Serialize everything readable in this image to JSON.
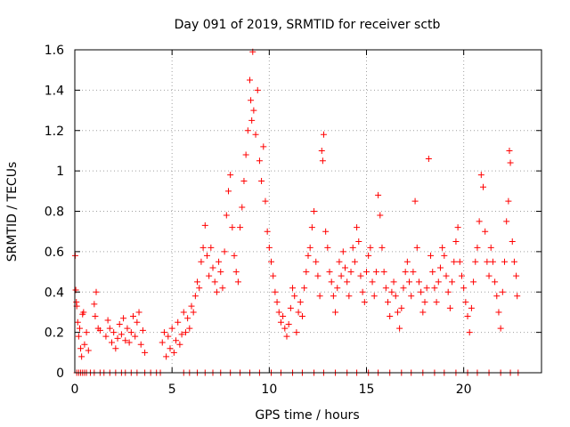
{
  "chart_data": {
    "type": "scatter",
    "title": "Day 091 of 2019, SRMTID for receiver sctb",
    "xlabel": "GPS time / hours",
    "ylabel": "SRMTID / TECUs",
    "xlim": [
      0,
      24
    ],
    "ylim": [
      0,
      1.6
    ],
    "xticks": [
      0,
      5,
      10,
      15,
      20
    ],
    "xtick_labels": [
      "0",
      "5",
      "10",
      "15",
      "20"
    ],
    "yticks": [
      0,
      0.2,
      0.4,
      0.6,
      0.8,
      1.0,
      1.2,
      1.4,
      1.6
    ],
    "ytick_labels": [
      "0",
      "0.2",
      "0.4",
      "0.6",
      "0.8",
      "1",
      "1.2",
      "1.4",
      "1.6"
    ],
    "grid": true,
    "marker": "+",
    "color": "#ff0000",
    "series": [
      {
        "name": "SRMTID",
        "points": [
          [
            0.02,
            0.58
          ],
          [
            0.05,
            0.41
          ],
          [
            0.08,
            0.35
          ],
          [
            0.1,
            0.33
          ],
          [
            0.15,
            0.25
          ],
          [
            0.2,
            0.18
          ],
          [
            0.25,
            0.22
          ],
          [
            0.3,
            0.12
          ],
          [
            0.35,
            0.08
          ],
          [
            0.4,
            0.29
          ],
          [
            0.45,
            0.3
          ],
          [
            0.5,
            0.14
          ],
          [
            0.6,
            0.2
          ],
          [
            0.7,
            0.11
          ],
          [
            1.0,
            0.34
          ],
          [
            1.05,
            0.28
          ],
          [
            1.1,
            0.4
          ],
          [
            1.2,
            0.22
          ],
          [
            1.3,
            0.21
          ],
          [
            1.6,
            0.18
          ],
          [
            1.7,
            0.26
          ],
          [
            1.8,
            0.22
          ],
          [
            1.9,
            0.15
          ],
          [
            2.0,
            0.2
          ],
          [
            2.1,
            0.12
          ],
          [
            2.2,
            0.17
          ],
          [
            2.3,
            0.24
          ],
          [
            2.4,
            0.19
          ],
          [
            2.5,
            0.27
          ],
          [
            2.6,
            0.16
          ],
          [
            2.7,
            0.22
          ],
          [
            2.8,
            0.15
          ],
          [
            2.9,
            0.2
          ],
          [
            3.0,
            0.28
          ],
          [
            3.1,
            0.18
          ],
          [
            3.2,
            0.25
          ],
          [
            3.3,
            0.3
          ],
          [
            3.4,
            0.14
          ],
          [
            3.5,
            0.21
          ],
          [
            3.6,
            0.1
          ],
          [
            4.5,
            0.15
          ],
          [
            4.6,
            0.2
          ],
          [
            4.7,
            0.08
          ],
          [
            4.8,
            0.18
          ],
          [
            4.9,
            0.12
          ],
          [
            5.0,
            0.22
          ],
          [
            5.1,
            0.1
          ],
          [
            5.2,
            0.16
          ],
          [
            5.3,
            0.25
          ],
          [
            5.4,
            0.14
          ],
          [
            5.5,
            0.19
          ],
          [
            5.6,
            0.3
          ],
          [
            5.7,
            0.2
          ],
          [
            5.8,
            0.27
          ],
          [
            5.9,
            0.22
          ],
          [
            6.0,
            0.33
          ],
          [
            6.1,
            0.3
          ],
          [
            6.2,
            0.38
          ],
          [
            6.3,
            0.45
          ],
          [
            6.4,
            0.42
          ],
          [
            6.5,
            0.55
          ],
          [
            6.6,
            0.62
          ],
          [
            6.7,
            0.73
          ],
          [
            6.8,
            0.58
          ],
          [
            6.9,
            0.48
          ],
          [
            7.0,
            0.62
          ],
          [
            7.1,
            0.52
          ],
          [
            7.2,
            0.45
          ],
          [
            7.3,
            0.4
          ],
          [
            7.4,
            0.55
          ],
          [
            7.5,
            0.5
          ],
          [
            7.6,
            0.42
          ],
          [
            7.7,
            0.6
          ],
          [
            7.8,
            0.78
          ],
          [
            7.9,
            0.9
          ],
          [
            8.0,
            0.98
          ],
          [
            8.1,
            0.72
          ],
          [
            8.2,
            0.58
          ],
          [
            8.3,
            0.5
          ],
          [
            8.4,
            0.45
          ],
          [
            8.5,
            0.72
          ],
          [
            8.6,
            0.82
          ],
          [
            8.7,
            0.95
          ],
          [
            8.8,
            1.08
          ],
          [
            8.9,
            1.2
          ],
          [
            9.0,
            1.45
          ],
          [
            9.05,
            1.35
          ],
          [
            9.1,
            1.25
          ],
          [
            9.15,
            1.59
          ],
          [
            9.2,
            1.3
          ],
          [
            9.3,
            1.18
          ],
          [
            9.4,
            1.4
          ],
          [
            9.5,
            1.05
          ],
          [
            9.6,
            0.95
          ],
          [
            9.7,
            1.12
          ],
          [
            9.8,
            0.85
          ],
          [
            9.9,
            0.7
          ],
          [
            10.0,
            0.62
          ],
          [
            10.1,
            0.55
          ],
          [
            10.2,
            0.48
          ],
          [
            10.3,
            0.4
          ],
          [
            10.4,
            0.35
          ],
          [
            10.5,
            0.3
          ],
          [
            10.6,
            0.25
          ],
          [
            10.7,
            0.28
          ],
          [
            10.8,
            0.22
          ],
          [
            10.9,
            0.18
          ],
          [
            11.0,
            0.24
          ],
          [
            11.1,
            0.32
          ],
          [
            11.2,
            0.42
          ],
          [
            11.3,
            0.38
          ],
          [
            11.4,
            0.2
          ],
          [
            11.5,
            0.3
          ],
          [
            11.6,
            0.35
          ],
          [
            11.7,
            0.28
          ],
          [
            11.8,
            0.42
          ],
          [
            11.9,
            0.5
          ],
          [
            12.0,
            0.58
          ],
          [
            12.1,
            0.62
          ],
          [
            12.2,
            0.72
          ],
          [
            12.3,
            0.8
          ],
          [
            12.4,
            0.55
          ],
          [
            12.5,
            0.48
          ],
          [
            12.6,
            0.38
          ],
          [
            12.7,
            1.1
          ],
          [
            12.75,
            1.05
          ],
          [
            12.8,
            1.18
          ],
          [
            12.9,
            0.7
          ],
          [
            13.0,
            0.62
          ],
          [
            13.1,
            0.5
          ],
          [
            13.2,
            0.45
          ],
          [
            13.3,
            0.38
          ],
          [
            13.4,
            0.3
          ],
          [
            13.5,
            0.42
          ],
          [
            13.6,
            0.55
          ],
          [
            13.7,
            0.48
          ],
          [
            13.8,
            0.6
          ],
          [
            13.9,
            0.52
          ],
          [
            14.0,
            0.45
          ],
          [
            14.1,
            0.38
          ],
          [
            14.2,
            0.5
          ],
          [
            14.3,
            0.62
          ],
          [
            14.4,
            0.55
          ],
          [
            14.5,
            0.72
          ],
          [
            14.6,
            0.65
          ],
          [
            14.7,
            0.48
          ],
          [
            14.8,
            0.4
          ],
          [
            14.9,
            0.35
          ],
          [
            15.0,
            0.5
          ],
          [
            15.1,
            0.58
          ],
          [
            15.2,
            0.62
          ],
          [
            15.3,
            0.45
          ],
          [
            15.4,
            0.38
          ],
          [
            15.5,
            0.5
          ],
          [
            15.6,
            0.88
          ],
          [
            15.7,
            0.78
          ],
          [
            15.8,
            0.62
          ],
          [
            15.9,
            0.5
          ],
          [
            16.0,
            0.42
          ],
          [
            16.1,
            0.35
          ],
          [
            16.2,
            0.28
          ],
          [
            16.3,
            0.4
          ],
          [
            16.4,
            0.45
          ],
          [
            16.5,
            0.38
          ],
          [
            16.6,
            0.3
          ],
          [
            16.7,
            0.22
          ],
          [
            16.8,
            0.32
          ],
          [
            16.9,
            0.42
          ],
          [
            17.0,
            0.5
          ],
          [
            17.1,
            0.55
          ],
          [
            17.2,
            0.45
          ],
          [
            17.3,
            0.38
          ],
          [
            17.4,
            0.5
          ],
          [
            17.5,
            0.85
          ],
          [
            17.6,
            0.62
          ],
          [
            17.7,
            0.45
          ],
          [
            17.8,
            0.4
          ],
          [
            17.9,
            0.3
          ],
          [
            18.0,
            0.35
          ],
          [
            18.1,
            0.42
          ],
          [
            18.2,
            1.06
          ],
          [
            18.3,
            0.58
          ],
          [
            18.4,
            0.5
          ],
          [
            18.5,
            0.42
          ],
          [
            18.6,
            0.35
          ],
          [
            18.7,
            0.45
          ],
          [
            18.8,
            0.52
          ],
          [
            18.9,
            0.62
          ],
          [
            19.0,
            0.58
          ],
          [
            19.1,
            0.48
          ],
          [
            19.2,
            0.4
          ],
          [
            19.3,
            0.32
          ],
          [
            19.4,
            0.45
          ],
          [
            19.5,
            0.55
          ],
          [
            19.6,
            0.65
          ],
          [
            19.7,
            0.72
          ],
          [
            19.8,
            0.55
          ],
          [
            19.9,
            0.48
          ],
          [
            20.0,
            0.42
          ],
          [
            20.1,
            0.35
          ],
          [
            20.2,
            0.28
          ],
          [
            20.3,
            0.2
          ],
          [
            20.4,
            0.32
          ],
          [
            20.5,
            0.45
          ],
          [
            20.6,
            0.55
          ],
          [
            20.7,
            0.62
          ],
          [
            20.8,
            0.75
          ],
          [
            20.9,
            0.98
          ],
          [
            21.0,
            0.92
          ],
          [
            21.1,
            0.7
          ],
          [
            21.2,
            0.55
          ],
          [
            21.3,
            0.48
          ],
          [
            21.4,
            0.62
          ],
          [
            21.5,
            0.55
          ],
          [
            21.6,
            0.45
          ],
          [
            21.7,
            0.38
          ],
          [
            21.8,
            0.3
          ],
          [
            21.9,
            0.22
          ],
          [
            22.0,
            0.4
          ],
          [
            22.1,
            0.55
          ],
          [
            22.2,
            0.75
          ],
          [
            22.3,
            0.85
          ],
          [
            22.35,
            1.1
          ],
          [
            22.4,
            1.04
          ],
          [
            22.5,
            0.65
          ],
          [
            22.6,
            0.55
          ],
          [
            22.7,
            0.48
          ],
          [
            22.75,
            0.38
          ],
          [
            0.1,
            0.0
          ],
          [
            0.2,
            0.0
          ],
          [
            0.3,
            0.0
          ],
          [
            0.4,
            0.0
          ],
          [
            0.5,
            0.0
          ],
          [
            0.6,
            0.0
          ],
          [
            0.8,
            0.0
          ],
          [
            1.0,
            0.0
          ],
          [
            1.3,
            0.0
          ],
          [
            1.5,
            0.0
          ],
          [
            1.8,
            0.0
          ],
          [
            2.1,
            0.0
          ],
          [
            2.4,
            0.0
          ],
          [
            2.6,
            0.0
          ],
          [
            2.9,
            0.0
          ],
          [
            3.2,
            0.0
          ],
          [
            3.6,
            0.0
          ],
          [
            3.9,
            0.0
          ],
          [
            4.2,
            0.0
          ],
          [
            4.4,
            0.0
          ],
          [
            5.6,
            0.0
          ],
          [
            5.9,
            0.0
          ],
          [
            6.3,
            0.0
          ],
          [
            6.7,
            0.0
          ],
          [
            7.1,
            0.0
          ],
          [
            7.5,
            0.0
          ],
          [
            8.0,
            0.0
          ],
          [
            8.5,
            0.0
          ],
          [
            9.0,
            0.0
          ],
          [
            9.5,
            0.0
          ],
          [
            10.1,
            0.0
          ],
          [
            10.6,
            0.0
          ],
          [
            11.2,
            0.0
          ],
          [
            11.7,
            0.0
          ],
          [
            12.3,
            0.0
          ],
          [
            12.8,
            0.0
          ],
          [
            13.4,
            0.0
          ],
          [
            14.0,
            0.0
          ],
          [
            14.5,
            0.0
          ],
          [
            15.1,
            0.0
          ],
          [
            15.6,
            0.0
          ],
          [
            16.2,
            0.0
          ],
          [
            16.8,
            0.0
          ],
          [
            17.3,
            0.0
          ],
          [
            17.9,
            0.0
          ],
          [
            18.5,
            0.0
          ],
          [
            19.0,
            0.0
          ],
          [
            19.6,
            0.0
          ],
          [
            20.2,
            0.0
          ],
          [
            20.7,
            0.0
          ],
          [
            21.3,
            0.0
          ],
          [
            21.9,
            0.0
          ],
          [
            22.4,
            0.0
          ],
          [
            22.8,
            0.0
          ]
        ]
      }
    ]
  }
}
